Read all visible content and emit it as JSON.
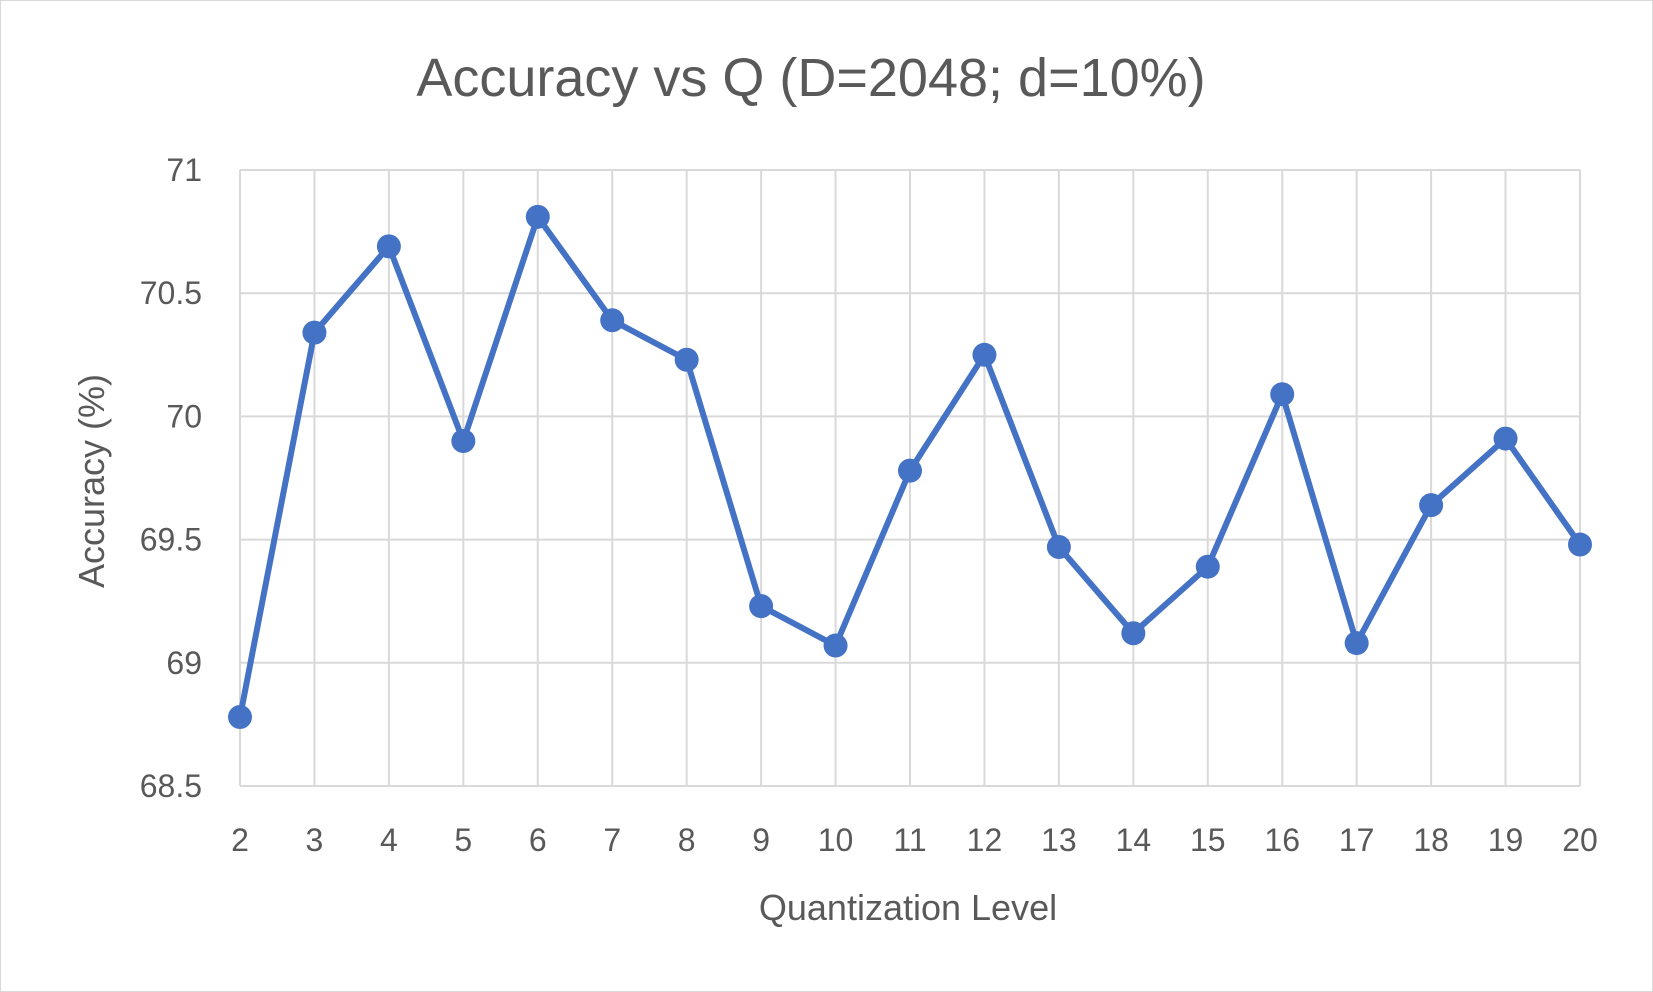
{
  "chart_data": {
    "type": "line",
    "title": "Accuracy vs Q (D=2048; d=10%)",
    "xlabel": "Quantization Level",
    "ylabel": "Accuracy (%)",
    "categories": [
      2,
      3,
      4,
      5,
      6,
      7,
      8,
      9,
      10,
      11,
      12,
      13,
      14,
      15,
      16,
      17,
      18,
      19,
      20
    ],
    "series": [
      {
        "values": [
          68.78,
          70.34,
          70.69,
          69.9,
          70.81,
          70.39,
          70.23,
          69.23,
          69.07,
          69.78,
          70.25,
          69.47,
          69.12,
          69.39,
          70.09,
          69.08,
          69.64,
          69.91,
          69.48
        ],
        "color": "#4472C4"
      }
    ],
    "ylim": [
      68.5,
      71
    ],
    "yticks": [
      "68.5",
      "69",
      "69.5",
      "70",
      "70.5",
      "71"
    ],
    "grid": true,
    "legend": "none"
  }
}
